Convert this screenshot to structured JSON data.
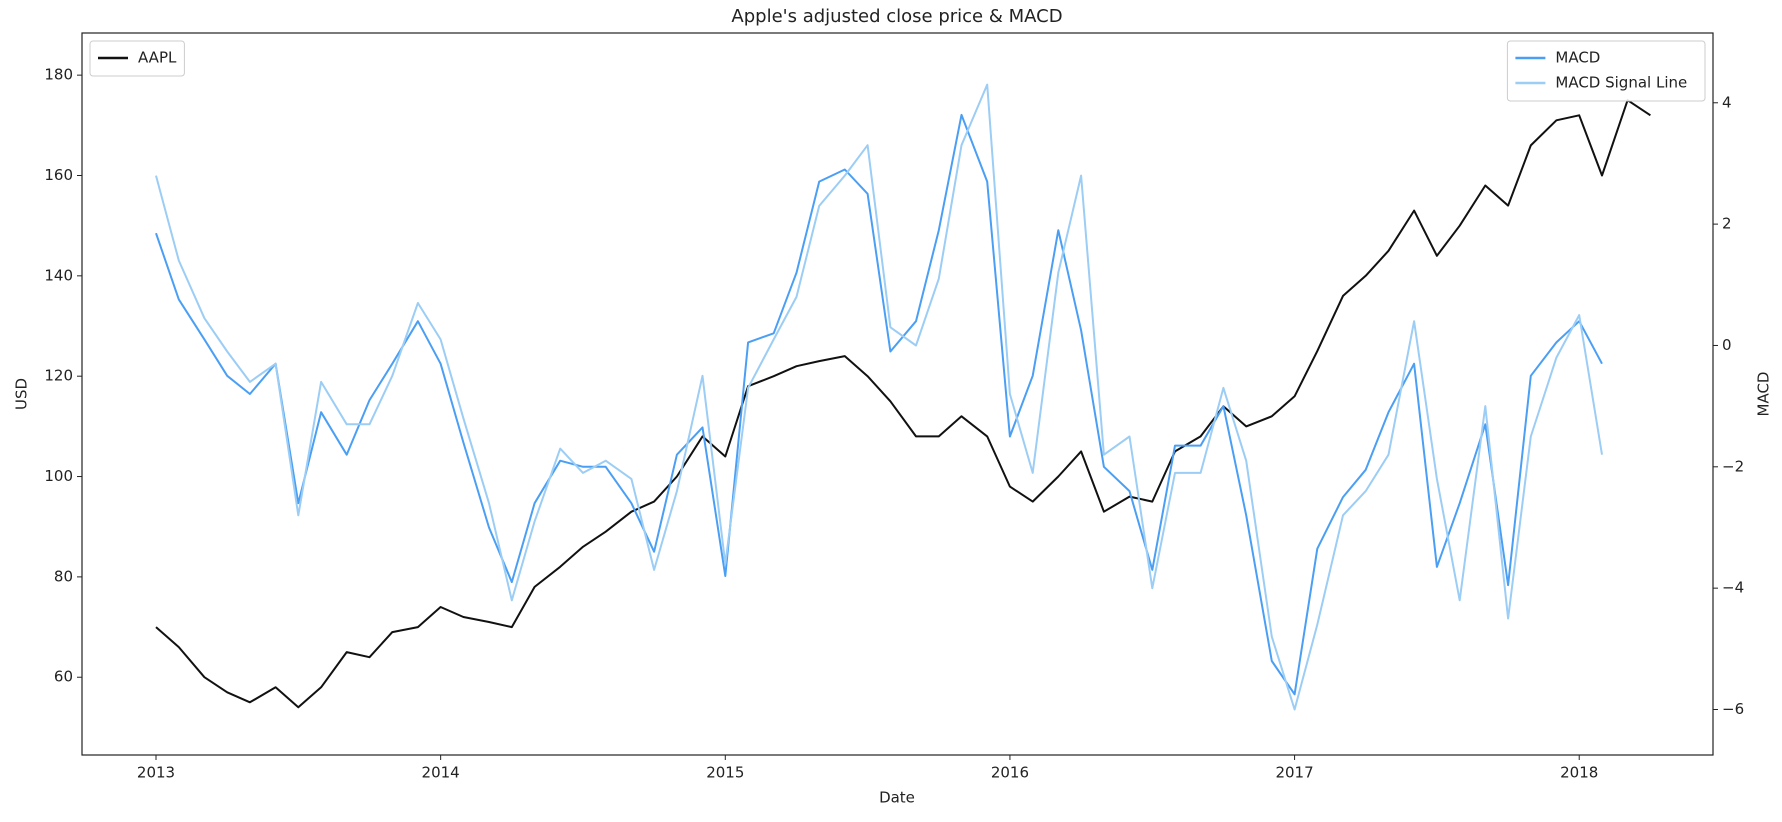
{
  "chart_data": {
    "type": "line",
    "title": "Apple's adjusted close price & MACD",
    "xlabel": "Date",
    "ylabel": "USD",
    "y2label": "MACD",
    "x": [
      2013,
      2013.08,
      2013.17,
      2013.25,
      2013.33,
      2013.42,
      2013.5,
      2013.58,
      2013.67,
      2013.75,
      2013.83,
      2013.92,
      2014,
      2014.08,
      2014.17,
      2014.25,
      2014.33,
      2014.42,
      2014.5,
      2014.58,
      2014.67,
      2014.75,
      2014.83,
      2014.92,
      2015,
      2015.08,
      2015.17,
      2015.25,
      2015.33,
      2015.42,
      2015.5,
      2015.58,
      2015.67,
      2015.75,
      2015.83,
      2015.92,
      2016,
      2016.08,
      2016.17,
      2016.25,
      2016.33,
      2016.42,
      2016.5,
      2016.58,
      2016.67,
      2016.75,
      2016.83,
      2016.92,
      2017,
      2017.08,
      2017.17,
      2017.25,
      2017.33,
      2017.42,
      2017.5,
      2017.58,
      2017.67,
      2017.75,
      2017.83,
      2017.92,
      2018,
      2018.08,
      2018.17,
      2018.25
    ],
    "xlim": [
      2012.74,
      2018.47
    ],
    "xticks": [
      2013,
      2014,
      2015,
      2016,
      2017,
      2018
    ],
    "ylim": [
      44.5,
      188.4
    ],
    "yticks": [
      60,
      80,
      100,
      120,
      140,
      160,
      180
    ],
    "y2lim": [
      -6.75,
      5.15
    ],
    "y2ticks": [
      {
        "value": -6,
        "label": "−6"
      },
      {
        "value": -4,
        "label": "−4"
      },
      {
        "value": -2,
        "label": "−2"
      },
      0,
      2,
      4
    ],
    "grid": false,
    "legend_loc": "upper left",
    "legend2_loc": "upper right",
    "series": [
      {
        "name": "AAPL",
        "color": "#111111",
        "values": [
          70,
          66,
          60,
          57,
          55,
          58,
          54,
          58,
          65,
          64,
          69,
          70,
          74,
          72,
          71,
          70,
          78,
          82,
          86,
          89,
          93,
          95,
          100,
          108,
          104,
          118,
          120,
          122,
          123,
          124,
          120,
          115,
          108,
          108,
          112,
          108,
          98,
          95,
          100,
          105,
          93,
          96,
          95,
          105,
          108,
          114,
          110,
          112,
          116,
          125,
          136,
          140,
          145,
          153,
          144,
          150,
          158,
          154,
          166,
          171,
          172,
          160,
          175,
          172
        ]
      },
      {
        "name": "MACD",
        "color": "#4a9ff5",
        "axis": "y2",
        "values": [
          1.85,
          0.76,
          0.1,
          -0.5,
          -0.8,
          -0.3,
          -2.6,
          -1.1,
          -1.8,
          -0.9,
          -0.3,
          0.4,
          -0.3,
          -1.6,
          -3.0,
          -3.9,
          -2.6,
          -1.9,
          -2.0,
          -2.0,
          -2.6,
          -3.4,
          -1.8,
          -1.35,
          -3.8,
          0.05,
          0.2,
          1.2,
          2.7,
          2.9,
          2.5,
          -0.1,
          0.4,
          1.9,
          3.8,
          2.7,
          -1.5,
          -0.5,
          1.9,
          0.25,
          -2.0,
          -2.4,
          -3.7,
          -1.65,
          -1.65,
          -1.0,
          -2.8,
          -5.2,
          -5.75,
          -3.35,
          -2.5,
          -2.05,
          -1.1,
          -0.3,
          -3.65,
          -2.6,
          -1.3,
          -3.95,
          -0.5,
          0.05,
          0.4,
          -0.3,
          null,
          null
        ]
      },
      {
        "name": "MACD Signal Line",
        "color": "#9ccdf5",
        "axis": "y2",
        "values": [
          2.8,
          1.4,
          0.45,
          -0.1,
          -0.6,
          -0.3,
          -2.8,
          -0.6,
          -1.3,
          -1.3,
          -0.5,
          0.7,
          0.1,
          -1.2,
          -2.6,
          -4.2,
          -2.9,
          -1.7,
          -2.1,
          -1.9,
          -2.2,
          -3.7,
          -2.4,
          -0.5,
          -3.6,
          -0.7,
          0.1,
          0.8,
          2.3,
          2.8,
          3.3,
          0.3,
          0.0,
          1.1,
          3.3,
          4.3,
          -0.8,
          -2.1,
          1.2,
          2.8,
          -1.8,
          -1.5,
          -4.0,
          -2.1,
          -2.1,
          -0.7,
          -1.9,
          -4.8,
          -6.0,
          -4.6,
          -2.8,
          -2.4,
          -1.8,
          0.4,
          -2.2,
          -4.2,
          -1.0,
          -4.5,
          -1.5,
          -0.2,
          0.5,
          -1.8,
          null,
          null
        ]
      }
    ]
  }
}
